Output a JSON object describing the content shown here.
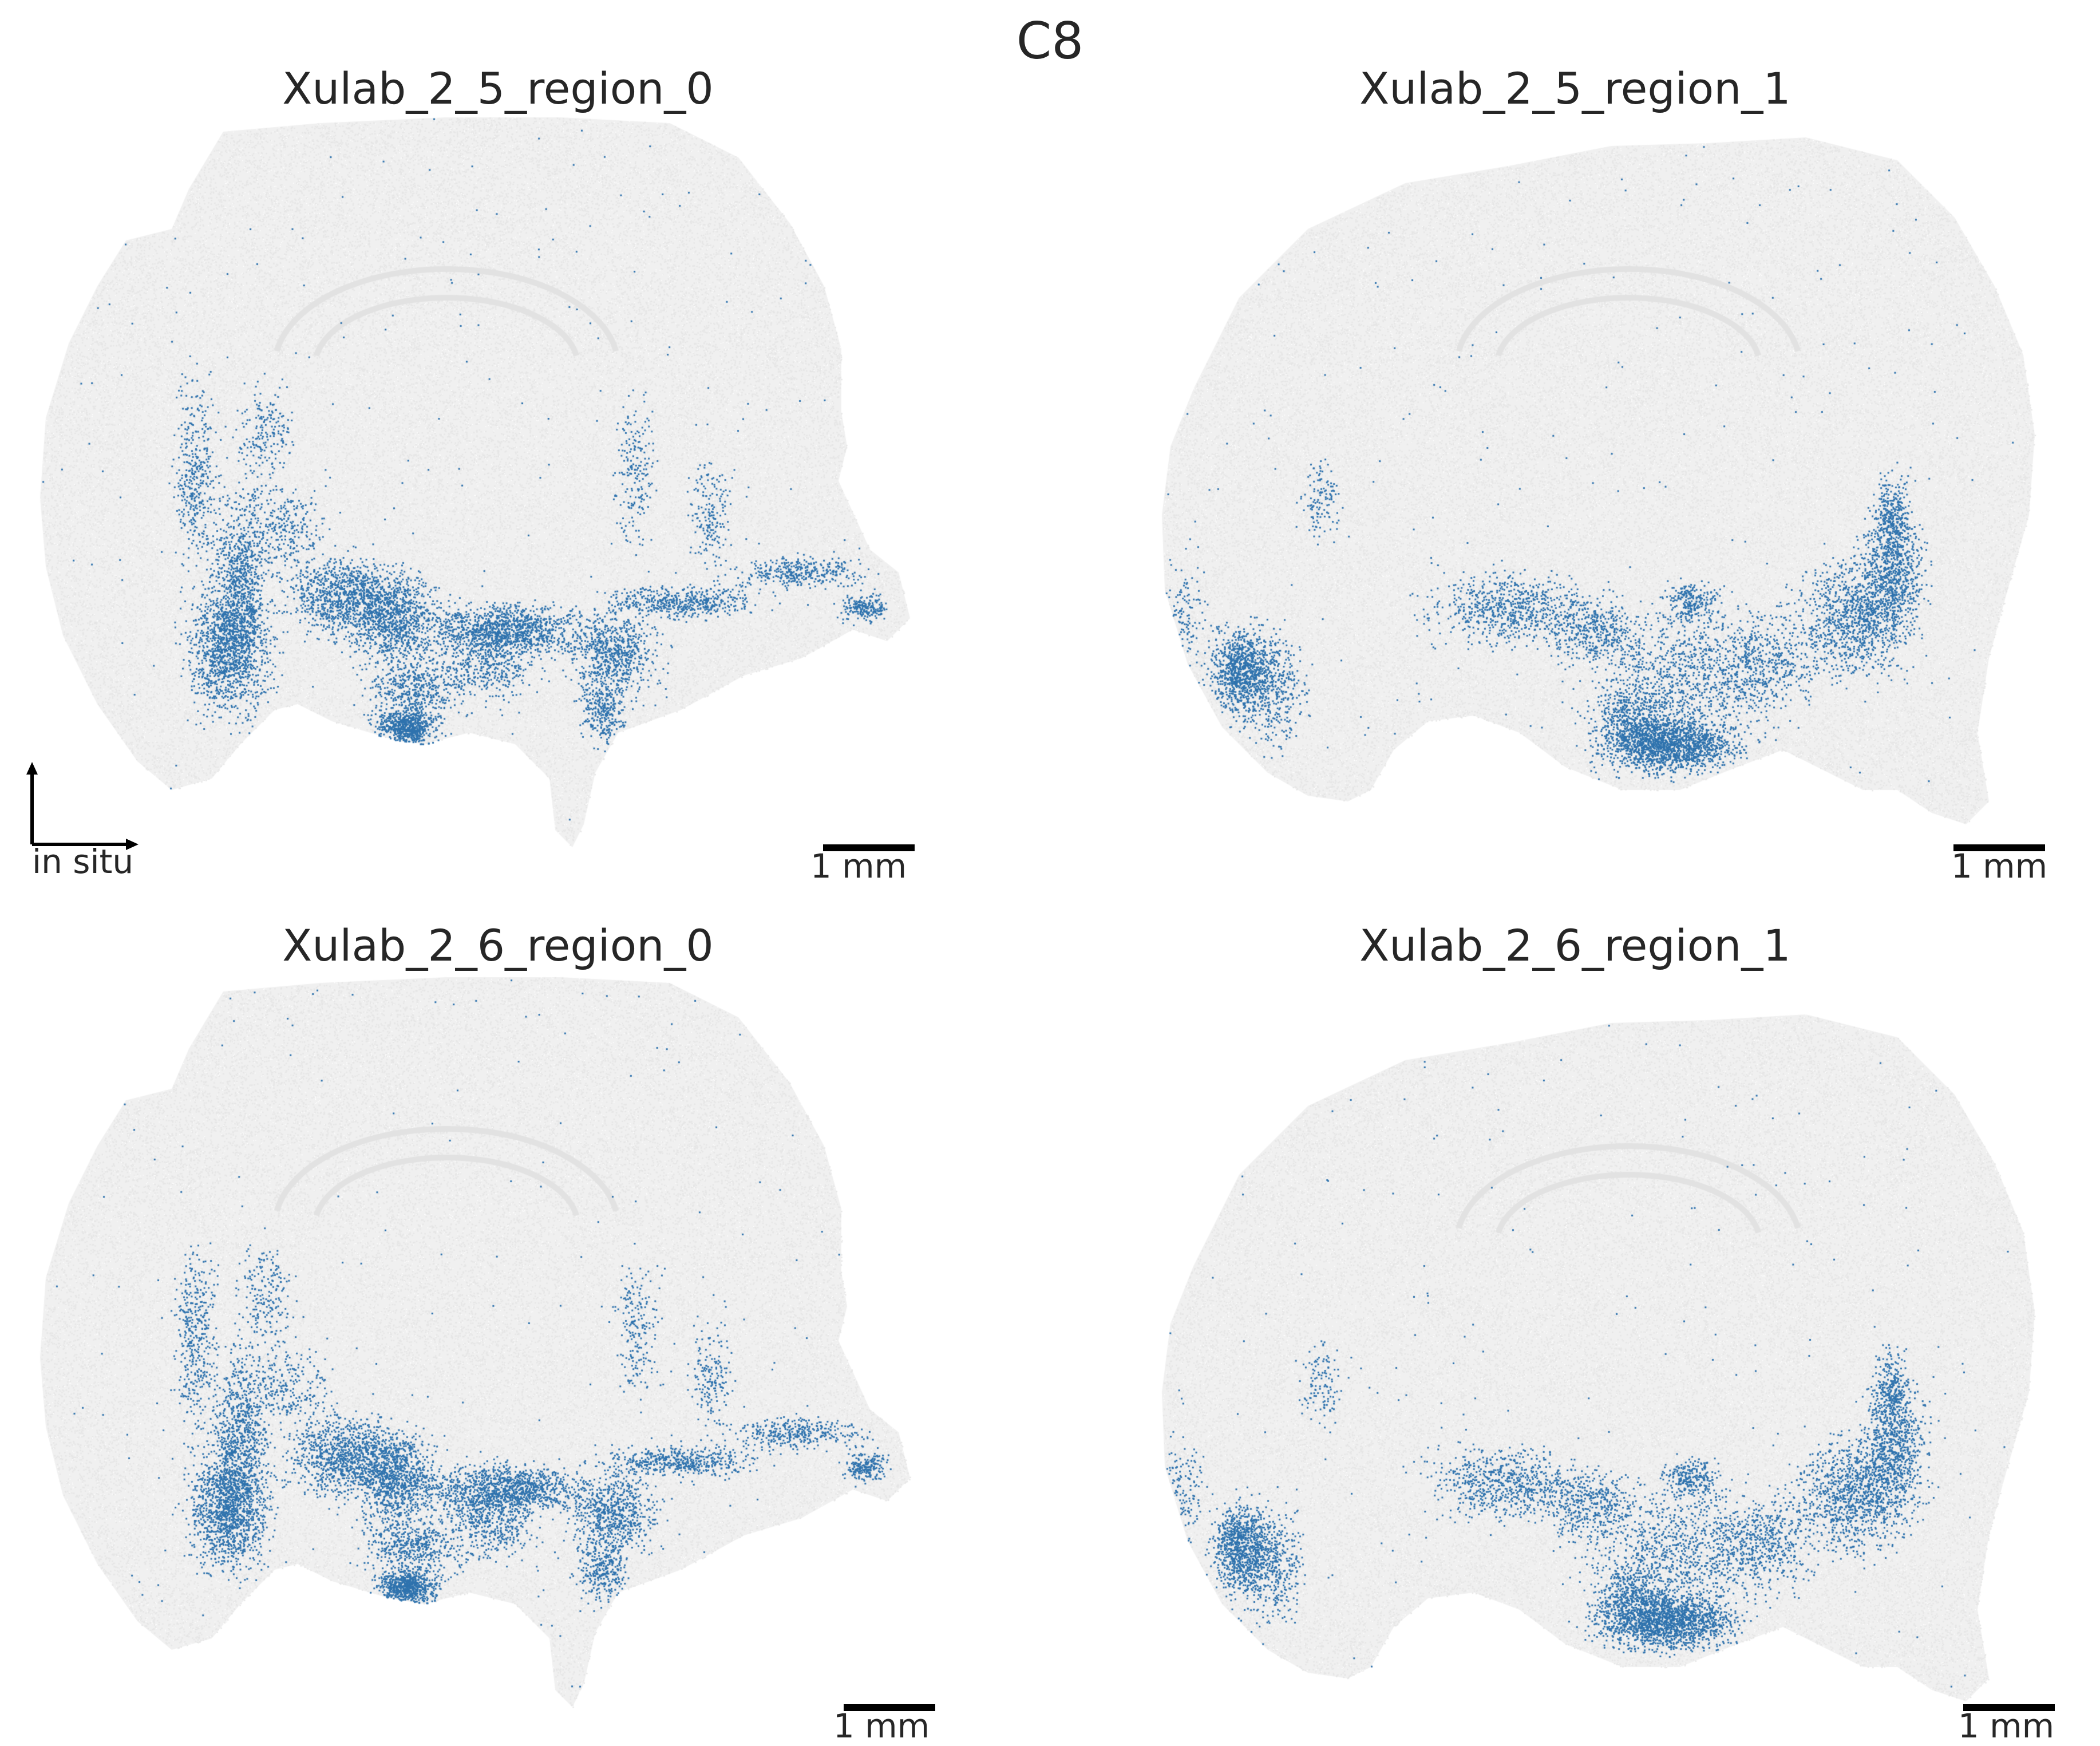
{
  "figure": {
    "title": "C8"
  },
  "colors": {
    "tissue": "#e6e6e6",
    "highlight": "#2f73ae",
    "text": "#262626"
  },
  "panels": [
    {
      "title": "Xulab_2_5_region_0",
      "scalebar_label": "1 mm",
      "shape": "A"
    },
    {
      "title": "Xulab_2_5_region_1",
      "scalebar_label": "1 mm",
      "shape": "B"
    },
    {
      "title": "Xulab_2_6_region_0",
      "scalebar_label": "1 mm",
      "shape": "A"
    },
    {
      "title": "Xulab_2_6_region_1",
      "scalebar_label": "1 mm",
      "shape": "B"
    }
  ],
  "axis_indicator": {
    "label": "in situ"
  }
}
